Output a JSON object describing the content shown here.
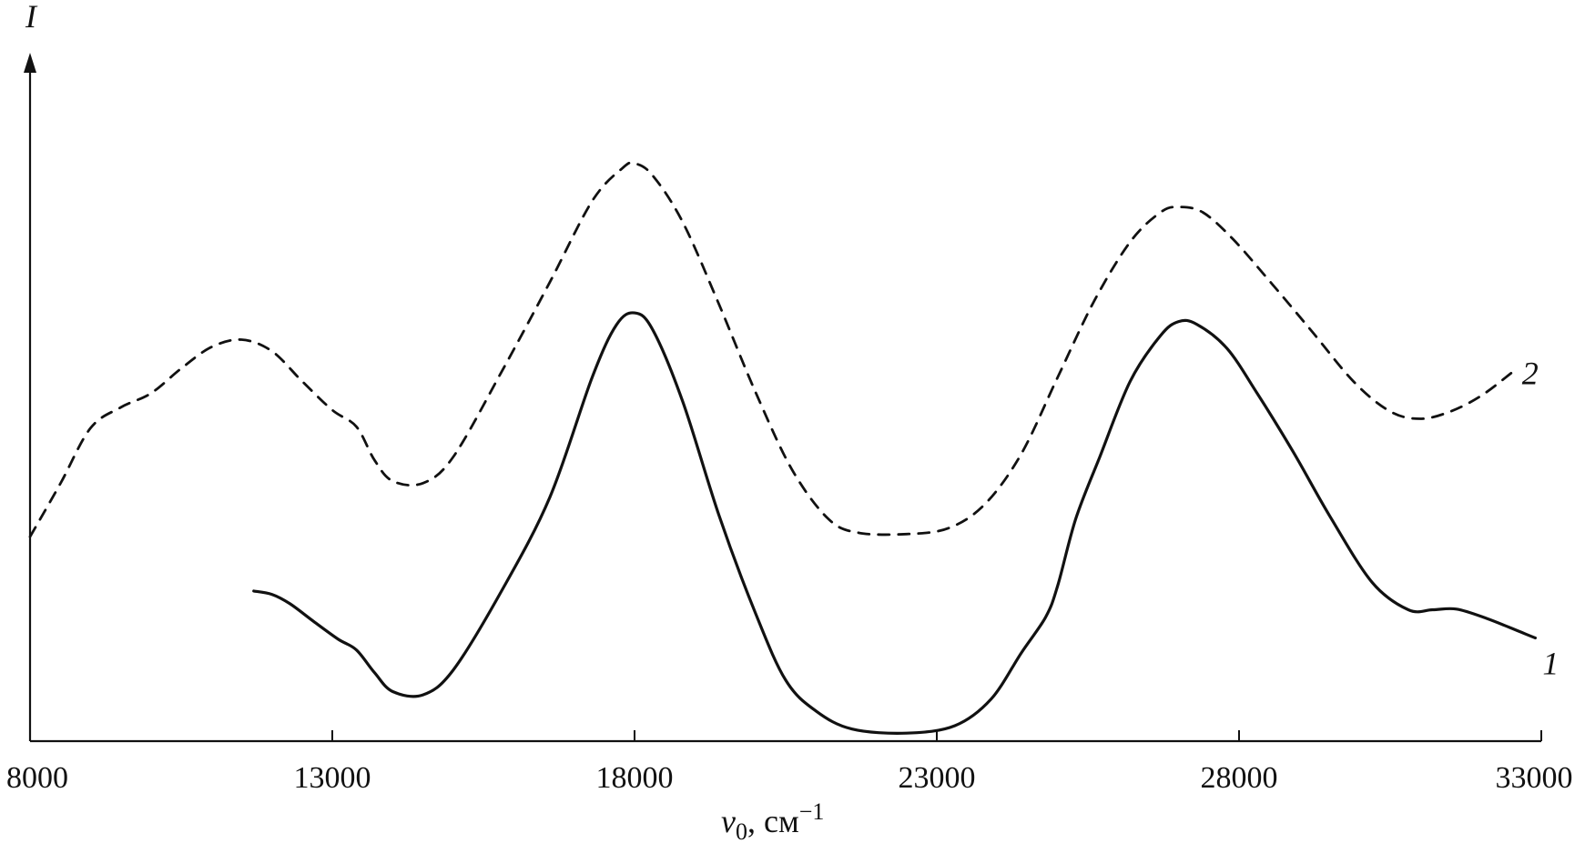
{
  "chart_data": {
    "type": "line",
    "title": "",
    "xlabel_symbol": "ν",
    "xlabel_subscript": "0",
    "xlabel_unit": ", см",
    "xlabel_unit_exponent": "−1",
    "ylabel": "I",
    "xlim": [
      8000,
      33000
    ],
    "ylim": [
      0,
      1
    ],
    "x_ticks": [
      8000,
      13000,
      18000,
      23000,
      28000,
      33000
    ],
    "x_tick_labels": [
      "8000",
      "13000",
      "18000",
      "23000",
      "28000",
      "33000"
    ],
    "grid": false,
    "series": [
      {
        "name": "1",
        "style": "solid",
        "points": [
          [
            11700,
            0.224
          ],
          [
            12000,
            0.219
          ],
          [
            12300,
            0.205
          ],
          [
            12700,
            0.178
          ],
          [
            13100,
            0.152
          ],
          [
            13400,
            0.136
          ],
          [
            13700,
            0.102
          ],
          [
            14000,
            0.074
          ],
          [
            14500,
            0.069
          ],
          [
            15000,
            0.106
          ],
          [
            15800,
            0.224
          ],
          [
            16600,
            0.364
          ],
          [
            17300,
            0.543
          ],
          [
            17700,
            0.621
          ],
          [
            18000,
            0.639
          ],
          [
            18300,
            0.614
          ],
          [
            18800,
            0.506
          ],
          [
            19400,
            0.336
          ],
          [
            20000,
            0.191
          ],
          [
            20500,
            0.091
          ],
          [
            21000,
            0.045
          ],
          [
            21600,
            0.018
          ],
          [
            22500,
            0.012
          ],
          [
            23300,
            0.023
          ],
          [
            23900,
            0.063
          ],
          [
            24400,
            0.132
          ],
          [
            24800,
            0.185
          ],
          [
            25000,
            0.232
          ],
          [
            25300,
            0.332
          ],
          [
            25700,
            0.425
          ],
          [
            26200,
            0.537
          ],
          [
            26700,
            0.605
          ],
          [
            27000,
            0.626
          ],
          [
            27300,
            0.622
          ],
          [
            27800,
            0.586
          ],
          [
            28300,
            0.519
          ],
          [
            28900,
            0.431
          ],
          [
            29500,
            0.336
          ],
          [
            30200,
            0.237
          ],
          [
            30800,
            0.196
          ],
          [
            31200,
            0.196
          ],
          [
            31600,
            0.197
          ],
          [
            32100,
            0.183
          ],
          [
            32600,
            0.165
          ],
          [
            32900,
            0.154
          ]
        ]
      },
      {
        "name": "2",
        "style": "dashed",
        "points": [
          [
            8000,
            0.305
          ],
          [
            8500,
            0.384
          ],
          [
            9000,
            0.467
          ],
          [
            9500,
            0.498
          ],
          [
            10000,
            0.519
          ],
          [
            10500,
            0.556
          ],
          [
            11000,
            0.588
          ],
          [
            11500,
            0.599
          ],
          [
            12000,
            0.582
          ],
          [
            12500,
            0.537
          ],
          [
            13000,
            0.494
          ],
          [
            13400,
            0.469
          ],
          [
            13700,
            0.419
          ],
          [
            14000,
            0.388
          ],
          [
            14500,
            0.385
          ],
          [
            15000,
            0.424
          ],
          [
            15800,
            0.551
          ],
          [
            16600,
            0.685
          ],
          [
            17300,
            0.806
          ],
          [
            17800,
            0.855
          ],
          [
            18000,
            0.862
          ],
          [
            18300,
            0.844
          ],
          [
            18800,
            0.774
          ],
          [
            19400,
            0.651
          ],
          [
            20000,
            0.521
          ],
          [
            20600,
            0.406
          ],
          [
            21200,
            0.332
          ],
          [
            21700,
            0.311
          ],
          [
            22500,
            0.309
          ],
          [
            23200,
            0.318
          ],
          [
            23800,
            0.354
          ],
          [
            24400,
            0.429
          ],
          [
            25000,
            0.543
          ],
          [
            25600,
            0.656
          ],
          [
            26200,
            0.745
          ],
          [
            26700,
            0.789
          ],
          [
            27000,
            0.797
          ],
          [
            27400,
            0.789
          ],
          [
            27900,
            0.749
          ],
          [
            28500,
            0.687
          ],
          [
            29200,
            0.612
          ],
          [
            29900,
            0.536
          ],
          [
            30500,
            0.492
          ],
          [
            31000,
            0.481
          ],
          [
            31500,
            0.492
          ],
          [
            32000,
            0.515
          ],
          [
            32500,
            0.549
          ]
        ]
      }
    ]
  }
}
